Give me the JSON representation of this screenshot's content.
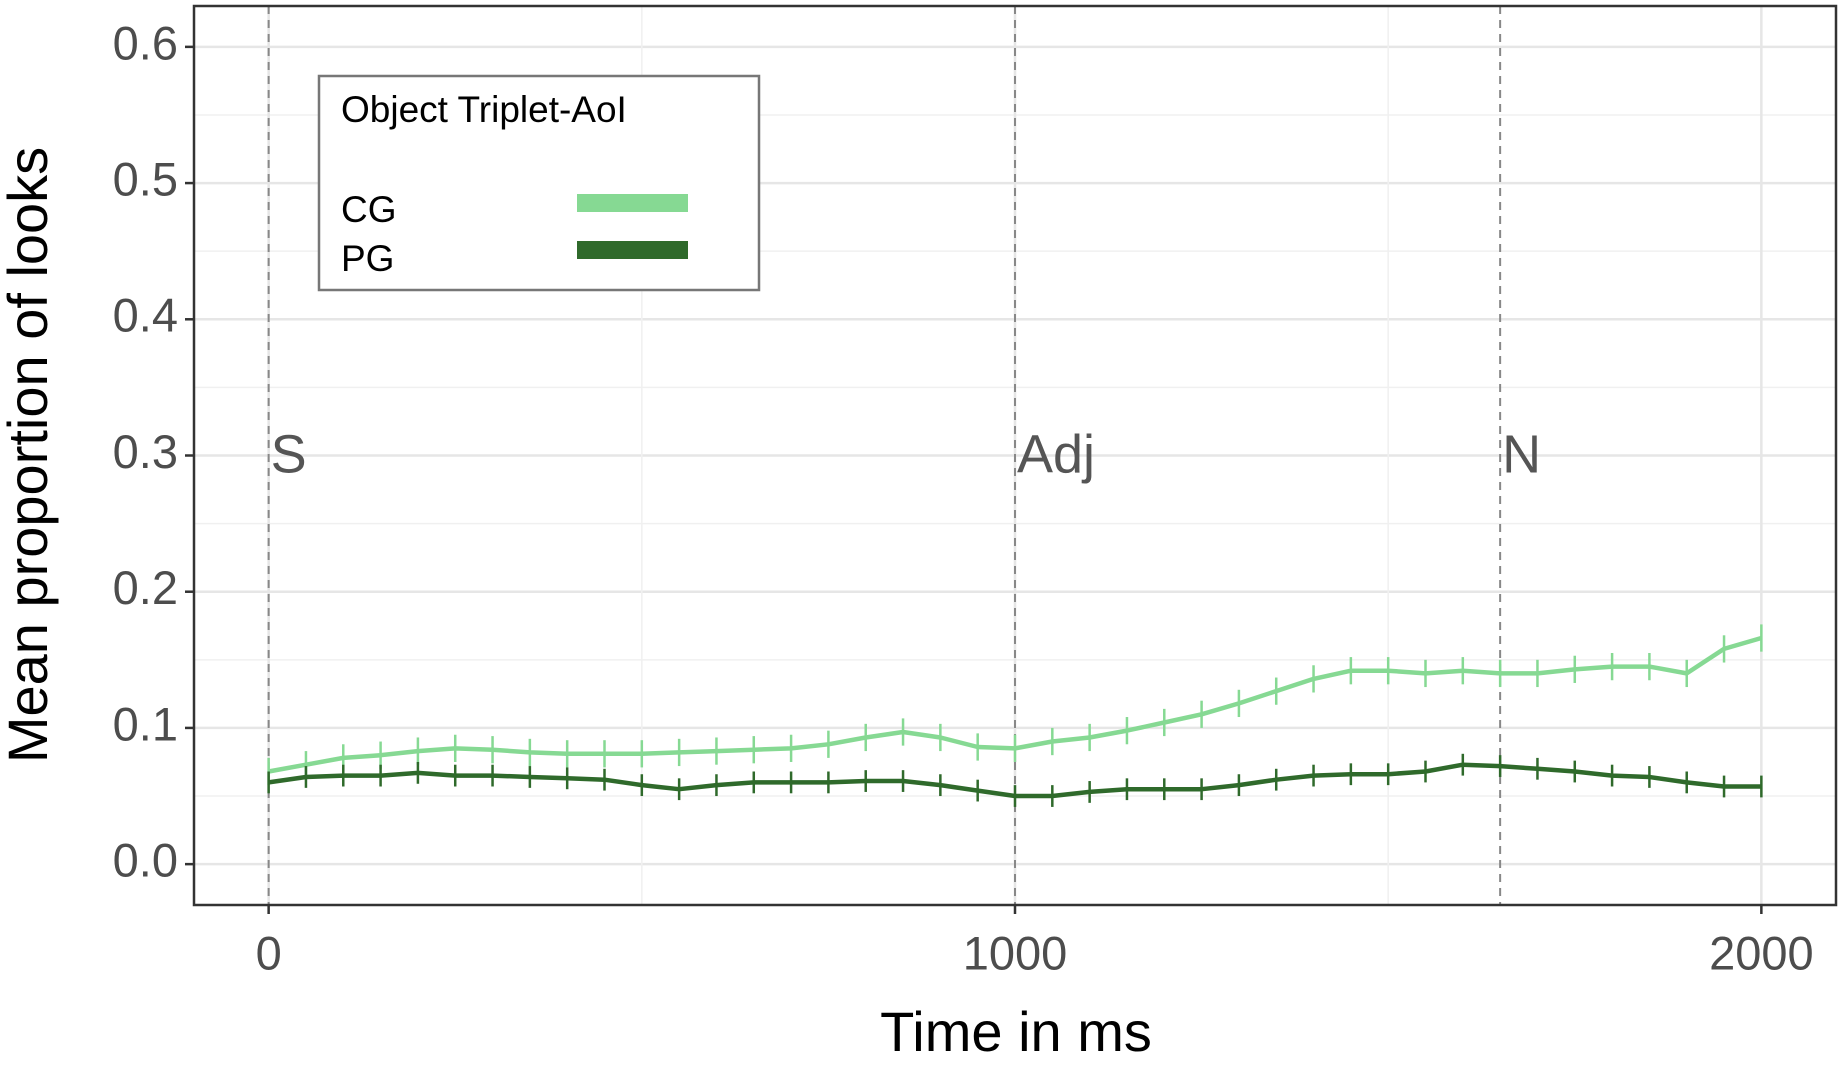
{
  "chart_data": {
    "type": "line",
    "x_label": "Time in ms",
    "y_label": "Mean proportion of looks",
    "xlim": [
      -100,
      2100
    ],
    "xticks": [
      0,
      1000,
      2000
    ],
    "ylim": [
      -0.03,
      0.63
    ],
    "yticks": [
      {
        "value": 0,
        "label": "0.0"
      },
      0.1,
      0.2,
      0.3,
      0.4,
      0.5,
      0.6
    ],
    "grid": true,
    "legend": {
      "title": "Object Triplet-AoI",
      "position": "upper left"
    },
    "annotations": [
      {
        "label": "S",
        "x": 0
      },
      {
        "label": "Adj",
        "x": 1000
      },
      {
        "label": "N",
        "x": 1650
      }
    ],
    "x": [
      0,
      50,
      100,
      150,
      200,
      250,
      300,
      350,
      400,
      450,
      500,
      550,
      600,
      650,
      700,
      750,
      800,
      850,
      900,
      950,
      1000,
      1050,
      1100,
      1150,
      1200,
      1250,
      1300,
      1350,
      1400,
      1450,
      1500,
      1550,
      1600,
      1650,
      1700,
      1750,
      1800,
      1850,
      1900,
      1950,
      2000
    ],
    "series": [
      {
        "name": "CG",
        "color": "#86d993",
        "values": [
          0.068,
          0.073,
          0.078,
          0.08,
          0.083,
          0.085,
          0.084,
          0.082,
          0.081,
          0.081,
          0.081,
          0.082,
          0.083,
          0.084,
          0.085,
          0.088,
          0.093,
          0.097,
          0.093,
          0.086,
          0.085,
          0.09,
          0.093,
          0.098,
          0.104,
          0.11,
          0.118,
          0.127,
          0.136,
          0.142,
          0.142,
          0.14,
          0.142,
          0.14,
          0.14,
          0.143,
          0.145,
          0.145,
          0.14,
          0.158,
          0.166
        ],
        "errors": [
          0.01,
          0.01,
          0.01,
          0.01,
          0.01,
          0.01,
          0.01,
          0.01,
          0.01,
          0.01,
          0.01,
          0.01,
          0.01,
          0.01,
          0.01,
          0.01,
          0.01,
          0.01,
          0.01,
          0.01,
          0.01,
          0.01,
          0.01,
          0.01,
          0.01,
          0.01,
          0.01,
          0.01,
          0.01,
          0.01,
          0.01,
          0.01,
          0.01,
          0.01,
          0.01,
          0.01,
          0.01,
          0.01,
          0.01,
          0.01,
          0.01
        ]
      },
      {
        "name": "PG",
        "color": "#2f6a2b",
        "values": [
          0.06,
          0.064,
          0.065,
          0.065,
          0.067,
          0.065,
          0.065,
          0.064,
          0.063,
          0.062,
          0.058,
          0.055,
          0.058,
          0.06,
          0.06,
          0.06,
          0.061,
          0.061,
          0.058,
          0.054,
          0.05,
          0.05,
          0.053,
          0.055,
          0.055,
          0.055,
          0.058,
          0.062,
          0.065,
          0.066,
          0.066,
          0.068,
          0.073,
          0.072,
          0.07,
          0.068,
          0.065,
          0.064,
          0.06,
          0.057,
          0.057
        ],
        "errors": [
          0.008,
          0.008,
          0.008,
          0.008,
          0.008,
          0.008,
          0.008,
          0.008,
          0.008,
          0.008,
          0.008,
          0.008,
          0.008,
          0.008,
          0.008,
          0.008,
          0.008,
          0.008,
          0.008,
          0.008,
          0.008,
          0.008,
          0.008,
          0.008,
          0.008,
          0.008,
          0.008,
          0.008,
          0.008,
          0.008,
          0.008,
          0.008,
          0.008,
          0.008,
          0.008,
          0.008,
          0.008,
          0.008,
          0.008,
          0.008,
          0.008
        ]
      }
    ]
  }
}
